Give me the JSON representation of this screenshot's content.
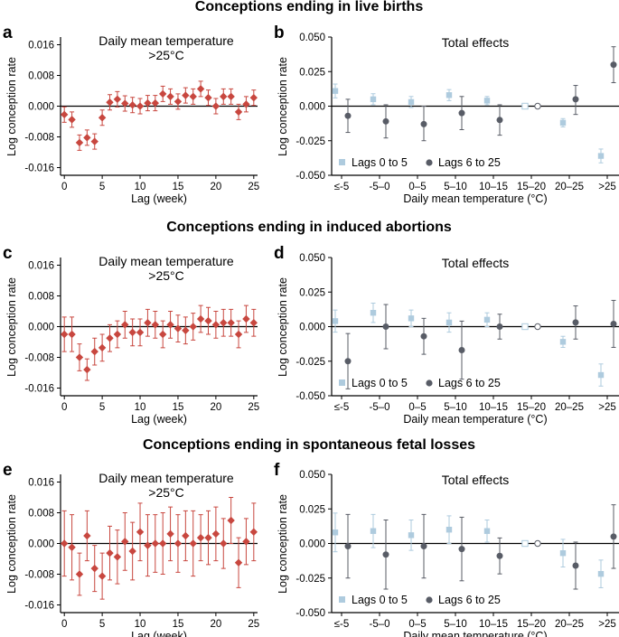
{
  "row_titles": [
    "Conceptions ending in live births",
    "Conceptions ending in induced abortions",
    "Conceptions ending in spontaneous fetal losses"
  ],
  "colors": {
    "lag_series": "#c8473f",
    "lags_0_5": "#aecbde",
    "lags_6_25": "#585c66",
    "axis": "#000000"
  },
  "chart_data": [
    {
      "id": "a",
      "panel_label": "a",
      "type": "scatter",
      "title": "Daily mean temperature",
      "subtitle": ">25°C",
      "xlabel": "Lag (week)",
      "ylabel": "Log conception rate",
      "xlim": [
        -0.5,
        25.5
      ],
      "ylim": [
        -0.018,
        0.018
      ],
      "xticks": [
        0,
        5,
        10,
        15,
        20,
        25
      ],
      "xtick_labels": [
        "0",
        "5",
        "10",
        "15",
        "20",
        "25"
      ],
      "yticks": [
        0.016,
        0.008,
        0.0,
        -0.008,
        -0.016
      ],
      "ytick_labels": [
        "0.016",
        "0.008",
        "0.000",
        "-0.008",
        "-0.016"
      ],
      "x": [
        0,
        1,
        2,
        3,
        4,
        5,
        6,
        7,
        8,
        9,
        10,
        11,
        12,
        13,
        14,
        15,
        16,
        17,
        18,
        19,
        20,
        21,
        22,
        23,
        24,
        25
      ],
      "y": [
        -0.0022,
        -0.0035,
        -0.0095,
        -0.0082,
        -0.0092,
        -0.003,
        0.001,
        0.0018,
        0.0007,
        0.0003,
        0.0,
        0.0008,
        0.0008,
        0.0032,
        0.0025,
        0.0012,
        0.0028,
        0.0025,
        0.0045,
        0.0022,
        0.0,
        0.0025,
        0.0025,
        -0.0015,
        0.0005,
        0.0022
      ],
      "lower": [
        -0.0042,
        -0.0055,
        -0.0115,
        -0.0102,
        -0.0112,
        -0.005,
        -0.001,
        -0.0002,
        -0.0013,
        -0.0017,
        -0.002,
        -0.0012,
        -0.0012,
        0.0012,
        0.0005,
        -0.0008,
        0.0008,
        0.0005,
        0.0025,
        0.0002,
        -0.002,
        0.0005,
        0.0005,
        -0.0035,
        -0.0015,
        0.0002
      ],
      "upper": [
        -0.0002,
        -0.0015,
        -0.0075,
        -0.0062,
        -0.0072,
        -0.001,
        0.003,
        0.0038,
        0.0027,
        0.0023,
        0.002,
        0.0028,
        0.0028,
        0.0052,
        0.0045,
        0.0032,
        0.0048,
        0.0045,
        0.0065,
        0.0042,
        0.002,
        0.0045,
        0.0045,
        0.0005,
        0.0025,
        0.0042
      ]
    },
    {
      "id": "b",
      "panel_label": "b",
      "type": "scatter",
      "title": "Total effects",
      "xlabel": "Daily mean temperature (°C)",
      "ylabel": "Log conception rate",
      "ylim": [
        -0.05,
        0.05
      ],
      "categories": [
        "≤-5",
        "-5–0",
        "0–5",
        "5–10",
        "10–15",
        "15–20",
        "20–25",
        ">25"
      ],
      "yticks": [
        0.05,
        0.025,
        0.0,
        -0.025,
        -0.05
      ],
      "ytick_labels": [
        "0.050",
        "0.025",
        "0.000",
        "-0.025",
        "-0.050"
      ],
      "reference_category": "15–20",
      "legend": [
        "Lags 0 to 5",
        "Lags 6 to 25"
      ],
      "series": [
        {
          "name": "Lags 0 to 5",
          "marker": "square",
          "values": [
            0.011,
            0.005,
            0.003,
            0.008,
            0.004,
            0.0,
            -0.012,
            -0.036
          ],
          "lower": [
            0.006,
            0.001,
            -0.001,
            0.004,
            0.001,
            0.0,
            -0.015,
            -0.041
          ],
          "upper": [
            0.016,
            0.009,
            0.007,
            0.012,
            0.007,
            0.0,
            -0.009,
            -0.031
          ]
        },
        {
          "name": "Lags 6 to 25",
          "marker": "circle",
          "values": [
            -0.007,
            -0.011,
            -0.013,
            -0.005,
            -0.01,
            0.0,
            0.005,
            0.03
          ],
          "lower": [
            -0.019,
            -0.023,
            -0.025,
            -0.017,
            -0.021,
            0.0,
            -0.006,
            0.017
          ],
          "upper": [
            0.005,
            0.001,
            0.0,
            0.007,
            0.001,
            0.0,
            0.015,
            0.043
          ]
        }
      ]
    },
    {
      "id": "c",
      "panel_label": "c",
      "type": "scatter",
      "title": "Daily mean temperature",
      "subtitle": ">25°C",
      "xlabel": "Lag (week)",
      "ylabel": "Log conception rate",
      "xlim": [
        -0.5,
        25.5
      ],
      "ylim": [
        -0.018,
        0.018
      ],
      "xticks": [
        0,
        5,
        10,
        15,
        20,
        25
      ],
      "xtick_labels": [
        "0",
        "5",
        "10",
        "15",
        "20",
        "25"
      ],
      "yticks": [
        0.016,
        0.008,
        0.0,
        -0.008,
        -0.016
      ],
      "ytick_labels": [
        "0.016",
        "0.008",
        "0.000",
        "-0.008",
        "-0.016"
      ],
      "x": [
        0,
        1,
        2,
        3,
        4,
        5,
        6,
        7,
        8,
        9,
        10,
        11,
        12,
        13,
        14,
        15,
        16,
        17,
        18,
        19,
        20,
        21,
        22,
        23,
        24,
        25
      ],
      "y": [
        -0.002,
        -0.002,
        -0.008,
        -0.0112,
        -0.0065,
        -0.0055,
        -0.003,
        -0.002,
        0.0005,
        -0.0015,
        -0.0015,
        0.001,
        0.0005,
        -0.002,
        0.0005,
        -0.0005,
        -0.001,
        0.0,
        0.002,
        0.0015,
        0.0005,
        0.001,
        0.001,
        -0.002,
        0.002,
        0.001
      ],
      "lower": [
        -0.0065,
        -0.0065,
        -0.0115,
        -0.014,
        -0.01,
        -0.009,
        -0.0065,
        -0.0055,
        -0.003,
        -0.005,
        -0.005,
        -0.0025,
        -0.003,
        -0.0055,
        -0.003,
        -0.004,
        -0.0045,
        -0.0035,
        -0.0015,
        -0.002,
        -0.003,
        -0.0025,
        -0.0025,
        -0.0055,
        -0.0015,
        -0.0025
      ],
      "upper": [
        0.0025,
        0.0025,
        -0.0045,
        -0.0084,
        -0.003,
        -0.002,
        0.0005,
        0.0015,
        0.004,
        0.002,
        0.002,
        0.0045,
        0.004,
        0.0015,
        0.004,
        0.003,
        0.0025,
        0.0035,
        0.0055,
        0.005,
        0.004,
        0.0045,
        0.0045,
        0.0015,
        0.0055,
        0.0045
      ]
    },
    {
      "id": "d",
      "panel_label": "d",
      "type": "scatter",
      "title": "Total effects",
      "xlabel": "Daily mean temperature (°C)",
      "ylabel": "Log conception rate",
      "ylim": [
        -0.05,
        0.05
      ],
      "categories": [
        "≤-5",
        "-5–0",
        "0–5",
        "5–10",
        "10–15",
        "15–20",
        "20–25",
        ">25"
      ],
      "yticks": [
        0.05,
        0.025,
        0.0,
        -0.025,
        -0.05
      ],
      "ytick_labels": [
        "0.050",
        "0.025",
        "0.000",
        "-0.025",
        "-0.050"
      ],
      "reference_category": "15–20",
      "legend": [
        "Lags 0 to 5",
        "Lags 6 to 25"
      ],
      "series": [
        {
          "name": "Lags 0 to 5",
          "marker": "square",
          "values": [
            0.004,
            0.01,
            0.006,
            0.003,
            0.005,
            0.0,
            -0.011,
            -0.035
          ],
          "lower": [
            -0.004,
            0.003,
            0.0,
            -0.004,
            0.0,
            0.0,
            -0.015,
            -0.043
          ],
          "upper": [
            0.012,
            0.017,
            0.012,
            0.01,
            0.01,
            0.0,
            -0.007,
            -0.027
          ]
        },
        {
          "name": "Lags 6 to 25",
          "marker": "circle",
          "values": [
            -0.025,
            0.0,
            -0.007,
            -0.017,
            0.0,
            0.0,
            0.003,
            0.002
          ],
          "lower": [
            -0.045,
            -0.016,
            -0.02,
            -0.038,
            -0.009,
            0.0,
            -0.009,
            -0.015
          ],
          "upper": [
            -0.005,
            0.016,
            0.006,
            0.004,
            0.009,
            0.0,
            0.015,
            0.019
          ]
        }
      ]
    },
    {
      "id": "e",
      "panel_label": "e",
      "type": "scatter",
      "title": "Daily mean temperature",
      "subtitle": ">25°C",
      "xlabel": "Lag (week)",
      "ylabel": "Log conception rate",
      "xlim": [
        -0.5,
        25.5
      ],
      "ylim": [
        -0.018,
        0.018
      ],
      "xticks": [
        0,
        5,
        10,
        15,
        20,
        25
      ],
      "xtick_labels": [
        "0",
        "5",
        "10",
        "15",
        "20",
        "25"
      ],
      "yticks": [
        0.016,
        0.008,
        0.0,
        -0.008,
        -0.016
      ],
      "ytick_labels": [
        "0.016",
        "0.008",
        "0.000",
        "-0.008",
        "-0.016"
      ],
      "x": [
        0,
        1,
        2,
        3,
        4,
        5,
        6,
        7,
        8,
        9,
        10,
        11,
        12,
        13,
        14,
        15,
        16,
        17,
        18,
        19,
        20,
        21,
        22,
        23,
        24,
        25
      ],
      "y": [
        0.0,
        -0.001,
        -0.008,
        0.002,
        -0.0065,
        -0.0085,
        -0.0025,
        -0.0035,
        0.0005,
        -0.002,
        0.003,
        -0.0005,
        0.0,
        0.0,
        0.0025,
        0.0,
        0.002,
        0.0,
        0.0015,
        0.0015,
        0.0025,
        0.0,
        0.006,
        -0.005,
        0.0005,
        0.003
      ],
      "lower": [
        -0.0085,
        -0.0095,
        -0.0135,
        -0.0045,
        -0.0125,
        -0.0145,
        -0.0095,
        -0.0105,
        -0.007,
        -0.0095,
        -0.0045,
        -0.0085,
        -0.0075,
        -0.008,
        -0.0045,
        -0.0075,
        -0.0045,
        -0.0085,
        -0.0045,
        -0.0055,
        -0.0045,
        -0.0065,
        0.0,
        -0.0115,
        -0.0055,
        -0.0045
      ],
      "upper": [
        0.0085,
        0.0075,
        -0.0025,
        0.0085,
        -0.0005,
        -0.0025,
        0.0045,
        0.0035,
        0.008,
        0.0055,
        0.0105,
        0.0075,
        0.0075,
        0.008,
        0.0095,
        0.0075,
        0.0085,
        0.0085,
        0.0075,
        0.0085,
        0.0095,
        0.0065,
        0.012,
        0.0015,
        0.0065,
        0.0105
      ]
    },
    {
      "id": "f",
      "panel_label": "f",
      "type": "scatter",
      "title": "Total effects",
      "xlabel": "Daily mean temperature (°C)",
      "ylabel": "Log conception rate",
      "ylim": [
        -0.05,
        0.05
      ],
      "categories": [
        "≤-5",
        "-5–0",
        "0–5",
        "5–10",
        "10–15",
        "15–20",
        "20–25",
        ">25"
      ],
      "yticks": [
        0.05,
        0.025,
        0.0,
        -0.025,
        -0.05
      ],
      "ytick_labels": [
        "0.050",
        "0.025",
        "0.000",
        "-0.025",
        "-0.050"
      ],
      "reference_category": "15–20",
      "legend": [
        "Lags 0 to 5",
        "Lags 6 to 25"
      ],
      "series": [
        {
          "name": "Lags 0 to 5",
          "marker": "square",
          "values": [
            0.008,
            0.009,
            0.006,
            0.01,
            0.009,
            0.0,
            -0.007,
            -0.022
          ],
          "lower": [
            -0.006,
            -0.003,
            -0.005,
            0.0,
            0.001,
            0.0,
            -0.017,
            -0.032
          ],
          "upper": [
            0.022,
            0.021,
            0.017,
            0.02,
            0.017,
            0.0,
            0.003,
            -0.012
          ]
        },
        {
          "name": "Lags 6 to 25",
          "marker": "circle",
          "values": [
            -0.002,
            -0.008,
            -0.002,
            -0.004,
            -0.009,
            0.0,
            -0.016,
            0.005
          ],
          "lower": [
            -0.025,
            -0.033,
            -0.025,
            -0.027,
            -0.022,
            0.0,
            -0.033,
            -0.018
          ],
          "upper": [
            0.021,
            0.017,
            0.021,
            0.019,
            0.004,
            0.0,
            0.001,
            0.028
          ]
        }
      ]
    }
  ]
}
